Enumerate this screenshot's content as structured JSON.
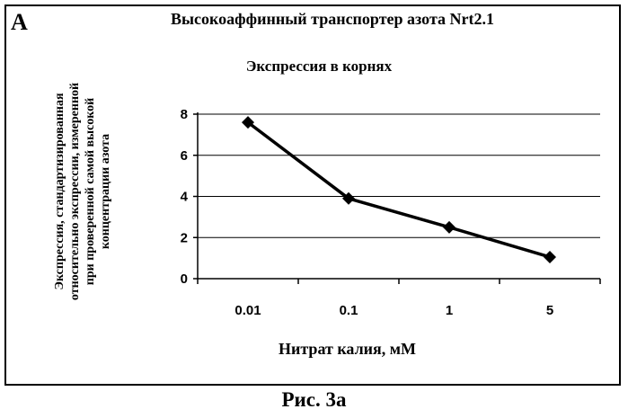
{
  "panel_letter": "A",
  "caption": "Рис. 3а",
  "chart_data": {
    "type": "line",
    "title": "Высокоаффинный транспортер азота Nrt2.1",
    "subtitle": "Экспрессия в корнях",
    "xlabel": "Нитрат калия, мМ",
    "ylabel": "Экспрессия, стандартизированная относительно экспрессии, измеренной при проверенной самой высокой концентрации азота",
    "categories": [
      "0.01",
      "0.1",
      "1",
      "5"
    ],
    "series": [
      {
        "values": [
          7.6,
          3.9,
          2.5,
          1.05
        ]
      }
    ],
    "ylim": [
      0,
      8
    ],
    "yticks": [
      0,
      2,
      4,
      6,
      8
    ],
    "grid": true,
    "legend": "none",
    "line_color": "#000000",
    "marker": "diamond"
  }
}
